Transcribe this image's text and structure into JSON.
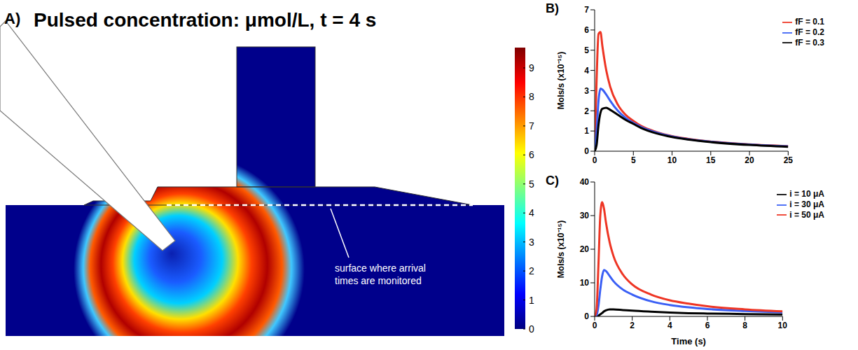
{
  "chart_data": [
    {
      "type": "heatmap",
      "panel_label": "A)",
      "title": "Pulsed concentration: μmol/L, t = 4 s",
      "annotation": "surface where arrival times are monitored",
      "colorbar": {
        "range": [
          0,
          9.7
        ],
        "ticks": [
          0,
          1,
          2,
          3,
          4,
          5,
          6,
          7,
          8,
          9
        ]
      }
    },
    {
      "type": "line",
      "panel_label": "B)",
      "ylabel": "Mols/s (x10⁻¹⁵)",
      "x": [
        0,
        0.25,
        0.5,
        0.75,
        1,
        1.5,
        2,
        3,
        4,
        5,
        6,
        8,
        10,
        12,
        15,
        20,
        25
      ],
      "series": [
        {
          "name": "fF = 0.1",
          "color": "#ee3524",
          "values": [
            0,
            3.5,
            5.8,
            5.9,
            5.2,
            4.0,
            3.2,
            2.3,
            1.8,
            1.5,
            1.25,
            0.95,
            0.75,
            0.62,
            0.48,
            0.34,
            0.25
          ]
        },
        {
          "name": "fF = 0.2",
          "color": "#3a5ff5",
          "values": [
            0,
            1.0,
            2.5,
            3.1,
            3.05,
            2.8,
            2.5,
            2.0,
            1.65,
            1.4,
            1.2,
            0.92,
            0.73,
            0.6,
            0.47,
            0.33,
            0.24
          ]
        },
        {
          "name": "fF = 0.3",
          "color": "#000000",
          "values": [
            0,
            0.3,
            1.3,
            1.9,
            2.1,
            2.15,
            2.05,
            1.8,
            1.55,
            1.35,
            1.15,
            0.88,
            0.7,
            0.58,
            0.45,
            0.31,
            0.22
          ]
        }
      ],
      "xlim": [
        0,
        25
      ],
      "xticks": [
        0,
        5,
        10,
        15,
        20,
        25
      ],
      "ylim": [
        0,
        7
      ],
      "yticks": [
        0,
        1,
        2,
        3,
        4,
        5,
        6,
        7
      ],
      "legend": "upper right",
      "grid": false
    },
    {
      "type": "line",
      "panel_label": "C)",
      "xlabel": "Time (s)",
      "ylabel": "Mols/s (x10⁻¹⁵)",
      "x": [
        0,
        0.1,
        0.2,
        0.3,
        0.4,
        0.5,
        0.6,
        0.8,
        1,
        1.5,
        2,
        3,
        4,
        5,
        6,
        8,
        10
      ],
      "series": [
        {
          "name": "i = 10 μA",
          "color": "#000000",
          "values": [
            0,
            0,
            0.2,
            0.6,
            1.0,
            1.5,
            1.8,
            2.1,
            2.1,
            1.9,
            1.7,
            1.4,
            1.15,
            0.95,
            0.85,
            0.7,
            0.55
          ]
        },
        {
          "name": "i = 30 μA",
          "color": "#3a5ff5",
          "values": [
            0,
            0.3,
            3,
            8,
            12,
            13.8,
            13.5,
            12,
            10.5,
            8,
            6.5,
            4.5,
            3.4,
            2.7,
            2.2,
            1.6,
            1.2
          ]
        },
        {
          "name": "i = 50 μA",
          "color": "#ee3524",
          "values": [
            0,
            2,
            15,
            30,
            34,
            32,
            28,
            22,
            18,
            12.5,
            9.5,
            6.5,
            4.8,
            3.8,
            3.0,
            2.1,
            1.5
          ]
        }
      ],
      "xlim": [
        0,
        10
      ],
      "xticks": [
        0,
        2,
        4,
        6,
        8,
        10
      ],
      "ylim": [
        0,
        40
      ],
      "yticks": [
        0,
        10,
        20,
        30,
        40
      ],
      "legend": "upper right",
      "grid": false
    }
  ]
}
